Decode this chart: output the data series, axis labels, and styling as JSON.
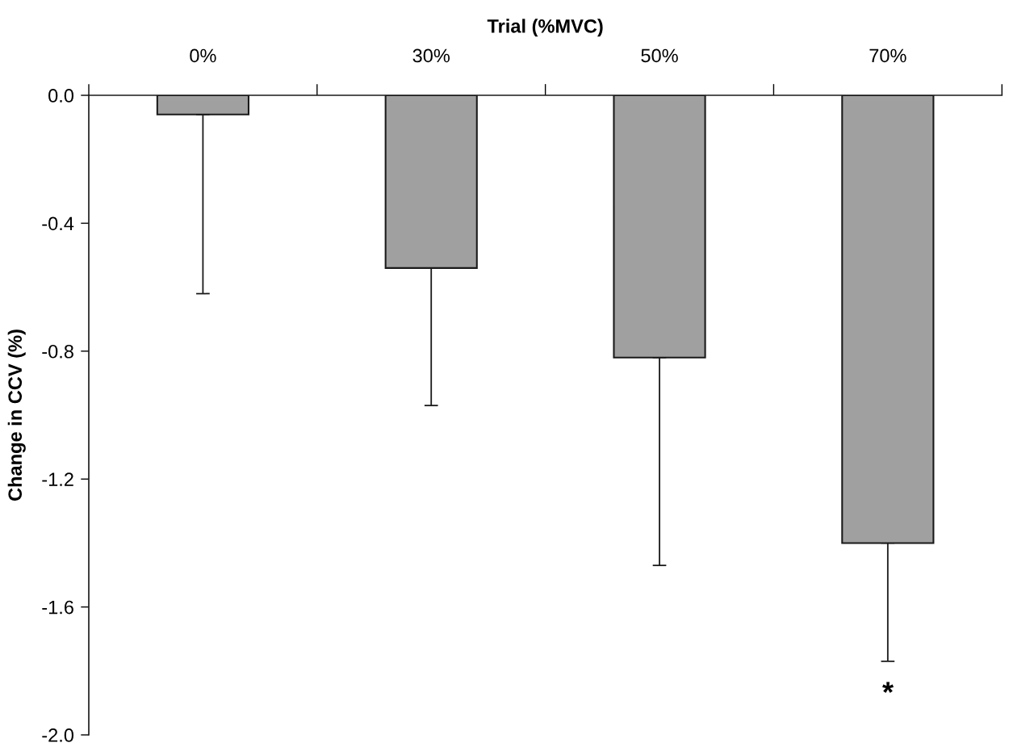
{
  "chart_data": {
    "type": "bar",
    "xlabel": "Trial (%MVC)",
    "ylabel": "Change in CCV (%)",
    "categories": [
      "0%",
      "30%",
      "50%",
      "70%"
    ],
    "values": [
      -0.06,
      -0.54,
      -0.82,
      -1.4
    ],
    "errors": [
      [
        -0.62,
        -0.06
      ],
      [
        -0.97,
        -0.54
      ],
      [
        -1.47,
        -0.82
      ],
      [
        -1.77,
        -1.4
      ]
    ],
    "color": "#a0a0a0",
    "ylim": [
      -2.0,
      0.0
    ],
    "yticks": [
      {
        "value": -2.0,
        "label": "-2.0"
      },
      -1.6,
      -1.2,
      -0.8,
      -0.4,
      {
        "value": 0.0,
        "label": "0.0"
      }
    ],
    "annotations": [
      "*"
    ]
  }
}
